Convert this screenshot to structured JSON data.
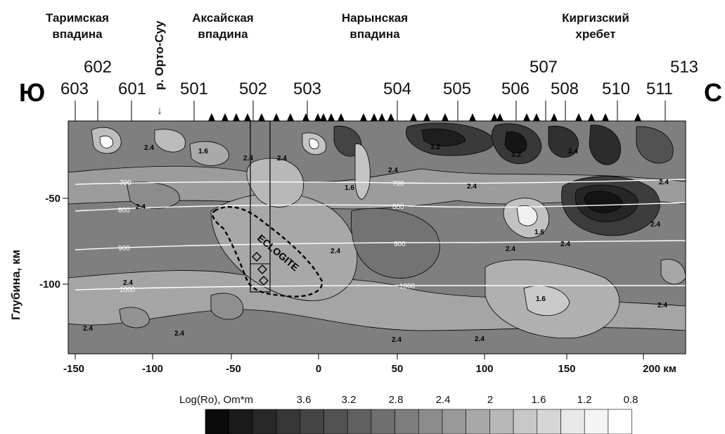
{
  "regions": {
    "tarim": [
      "Таримская",
      "впадина"
    ],
    "aksai": [
      "Аксайская",
      "впадина"
    ],
    "naryn": [
      "Нарынская",
      "впадина"
    ],
    "kyrgyz": [
      "Киргизский",
      "хребет"
    ]
  },
  "river_label": "р. Орто-Суу",
  "south_label": "Ю",
  "north_label": "С",
  "stations_row1": [
    "603",
    "601",
    "501",
    "502",
    "503",
    "504",
    "505",
    "506",
    "508",
    "510",
    "511"
  ],
  "stations_row2": [
    "602",
    "507",
    "513"
  ],
  "y_axis_label": "Глубина, км",
  "y_ticks": [
    "-50",
    "-100"
  ],
  "x_ticks": [
    "-150",
    "-100",
    "-50",
    "0",
    "50",
    "100",
    "150",
    "200 км"
  ],
  "eclogite_label": "ECLOGITE",
  "isotherms": [
    "700",
    "800",
    "900",
    "1000"
  ],
  "contour_labels": [
    "2.4",
    "1.6",
    "3.2",
    "2.4",
    "2.4",
    "1.6",
    "2.4",
    "3.2",
    "2.4",
    "2.4",
    "2.4",
    "1.6",
    "2.4",
    "2.4",
    "2.4",
    "2.4",
    "2.4",
    "1.6",
    "2.4",
    "2.4",
    "2.4",
    "2.4",
    "2.4",
    "2.4"
  ],
  "legend": {
    "title": "Log(Ro), Om*m",
    "values": [
      "3.6",
      "3.2",
      "2.8",
      "2.4",
      "2",
      "1.6",
      "1.2",
      "0.8"
    ],
    "colors": [
      "#0b0b0b",
      "#1a1a1a",
      "#282828",
      "#363636",
      "#444444",
      "#525252",
      "#606060",
      "#6f6f6f",
      "#7d7d7d",
      "#8c8c8c",
      "#9a9a9a",
      "#a9a9a9",
      "#b8b8b8",
      "#c7c7c7",
      "#d6d6d6",
      "#e8e8e8",
      "#f4f4f4",
      "#ffffff"
    ]
  },
  "colors": {
    "background_field": "#7f7f7f",
    "isotherm": "#ffffff",
    "outline": "#000000"
  }
}
